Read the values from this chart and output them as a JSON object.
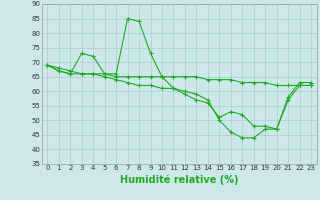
{
  "series1": {
    "x": [
      0,
      1,
      2,
      3,
      4,
      5,
      6,
      7,
      8,
      9,
      10,
      11,
      12,
      13,
      14,
      15,
      16,
      17,
      18,
      19,
      20,
      21,
      22,
      23
    ],
    "y": [
      69,
      67,
      66,
      73,
      72,
      66,
      66,
      85,
      84,
      73,
      65,
      61,
      59,
      57,
      56,
      51,
      53,
      52,
      48,
      48,
      47,
      58,
      63,
      63
    ]
  },
  "series2": {
    "x": [
      0,
      1,
      2,
      3,
      4,
      5,
      6,
      7,
      8,
      9,
      10,
      11,
      12,
      13,
      14,
      15,
      16,
      17,
      18,
      19,
      20,
      21,
      22,
      23
    ],
    "y": [
      69,
      68,
      67,
      66,
      66,
      66,
      65,
      65,
      65,
      65,
      65,
      65,
      65,
      65,
      64,
      64,
      64,
      63,
      63,
      63,
      62,
      62,
      62,
      62
    ]
  },
  "series3": {
    "x": [
      0,
      1,
      2,
      3,
      4,
      5,
      6,
      7,
      8,
      9,
      10,
      11,
      12,
      13,
      14,
      15,
      16,
      17,
      18,
      19,
      20,
      21,
      22,
      23
    ],
    "y": [
      69,
      67,
      66,
      66,
      66,
      65,
      64,
      63,
      62,
      62,
      61,
      61,
      60,
      59,
      57,
      50,
      46,
      44,
      44,
      47,
      47,
      57,
      62,
      62
    ]
  },
  "color": "#22aa22",
  "marker": "+",
  "markersize": 3,
  "linewidth": 0.8,
  "markeredgewidth": 0.8,
  "xlabel": "Humidité relative (%)",
  "xlim": [
    -0.5,
    23.5
  ],
  "ylim": [
    35,
    90
  ],
  "yticks": [
    35,
    40,
    45,
    50,
    55,
    60,
    65,
    70,
    75,
    80,
    85,
    90
  ],
  "xticks": [
    0,
    1,
    2,
    3,
    4,
    5,
    6,
    7,
    8,
    9,
    10,
    11,
    12,
    13,
    14,
    15,
    16,
    17,
    18,
    19,
    20,
    21,
    22,
    23
  ],
  "bg_color": "#cde8ea",
  "grid_color": "#aacccc",
  "tick_fontsize": 5.0,
  "xlabel_fontsize": 7.0
}
